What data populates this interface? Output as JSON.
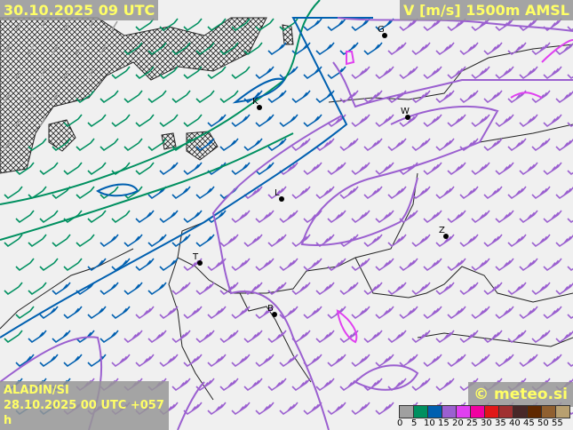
{
  "header": {
    "valid_time": "30.10.2025 09 UTC",
    "parameter": "V [m/s] 1500m AMSL"
  },
  "footer": {
    "model": "ALADIN/SI",
    "run_info": "28.10.2025 00 UTC +057 h",
    "copyright": "© meteo.si"
  },
  "legend": {
    "ticks": [
      "0",
      "5",
      "10",
      "15",
      "20",
      "25",
      "30",
      "35",
      "40",
      "45",
      "50",
      "55"
    ],
    "colors": [
      "#a0a0a0",
      "#009060",
      "#0060b0",
      "#9b60d0",
      "#e040f0",
      "#f000a0",
      "#e01818",
      "#a03030",
      "#482828",
      "#602800",
      "#906030",
      "#b8a070"
    ]
  },
  "cities": [
    {
      "label": "G"
    },
    {
      "label": "W"
    },
    {
      "label": "K"
    },
    {
      "label": "L"
    },
    {
      "label": "Z"
    },
    {
      "label": "B"
    },
    {
      "label": "T"
    }
  ],
  "wind_colors": {
    "calm": "#a0a0a0",
    "green": "#009060",
    "blue": "#0060b0",
    "purple": "#9b60d0",
    "magenta": "#e040f0"
  },
  "wind_direction": "south-westerly"
}
